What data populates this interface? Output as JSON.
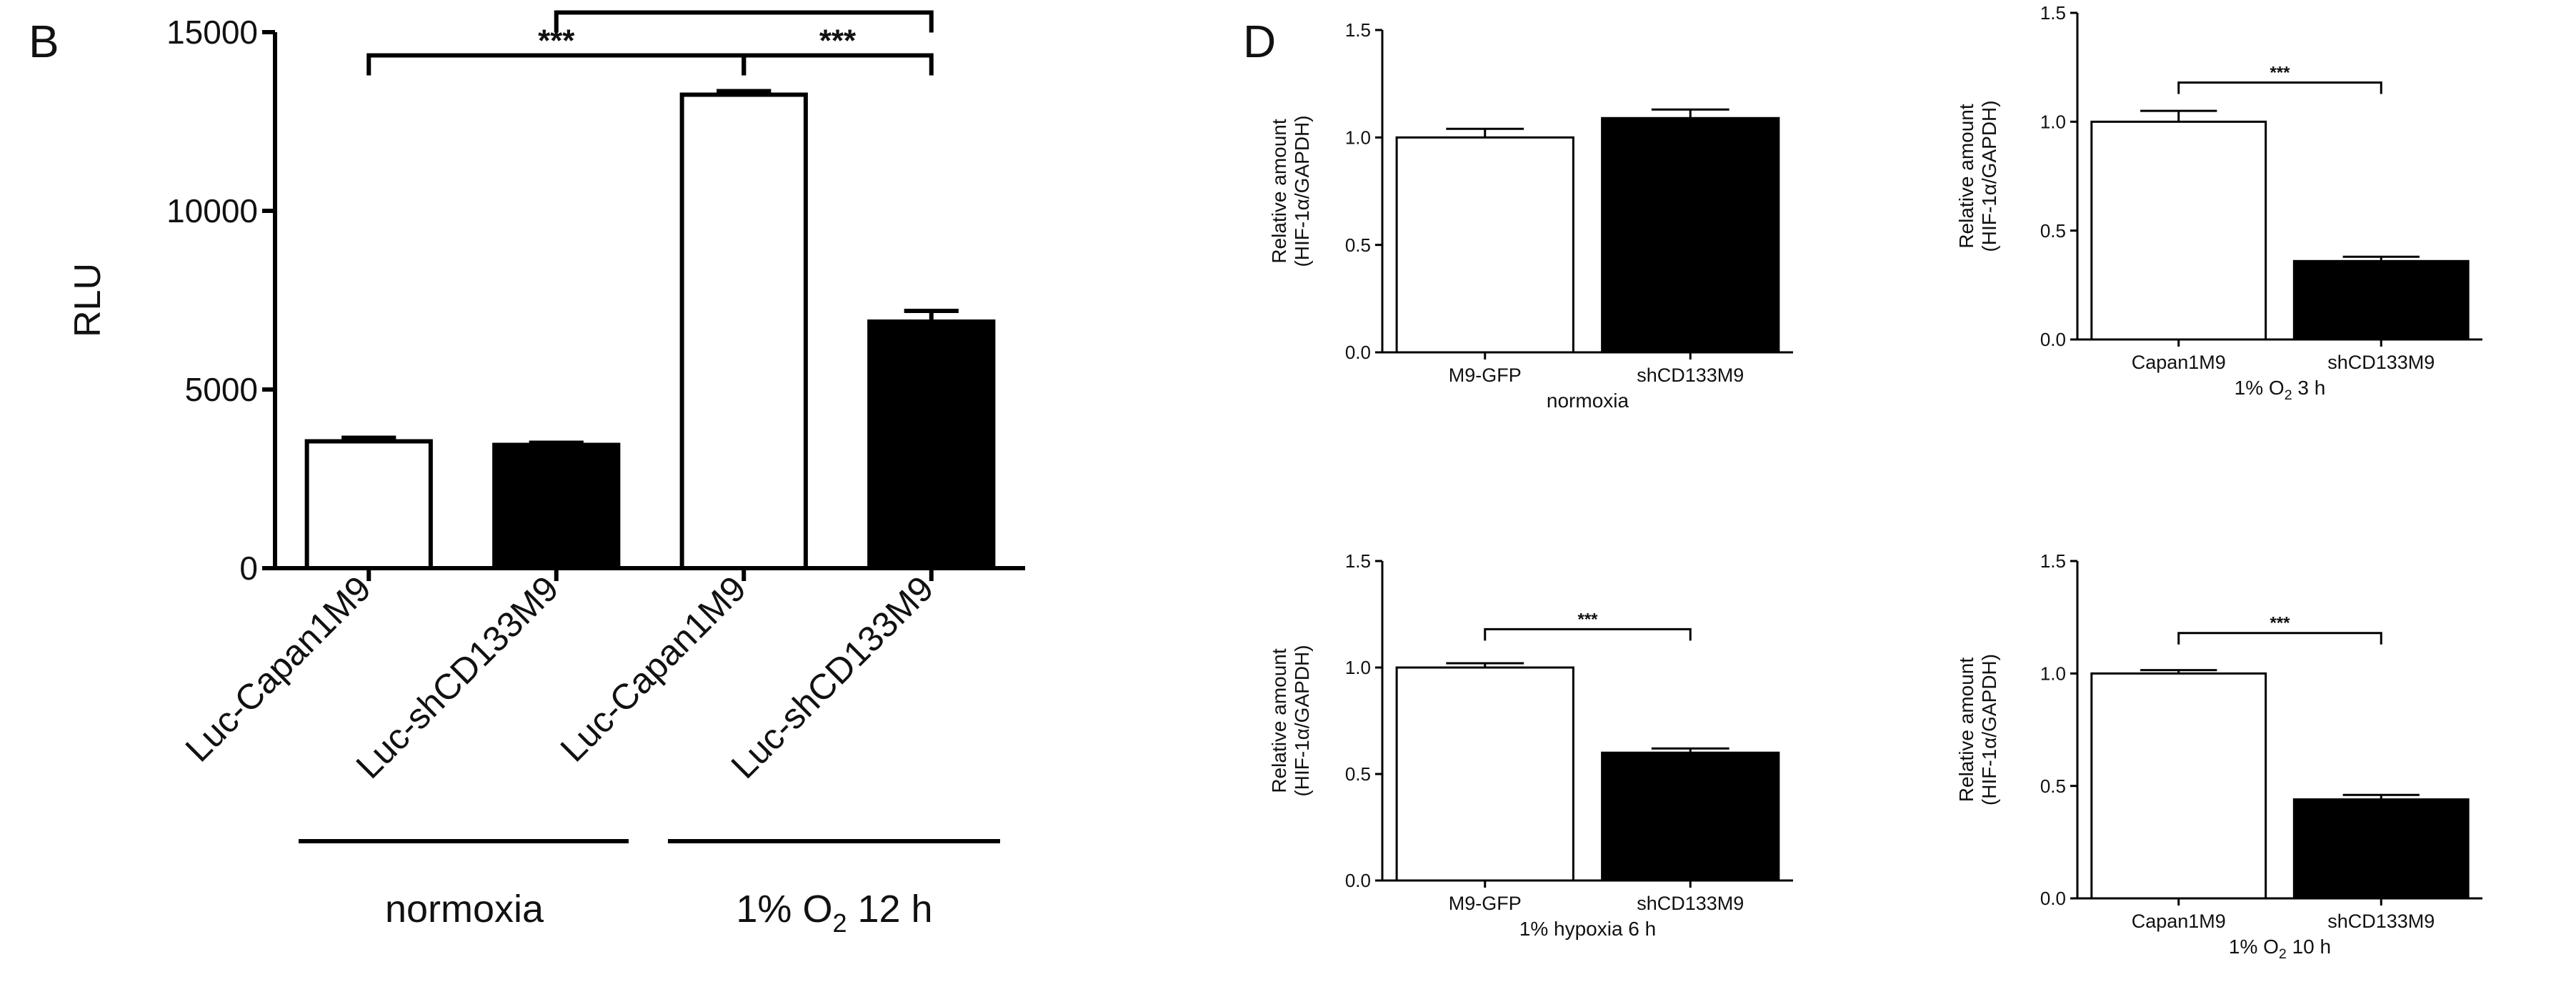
{
  "panel_b": {
    "label": "B",
    "group_labels": [
      "normoxia",
      "1% O",
      "2",
      " 12 h"
    ]
  },
  "panel_d": {
    "label": "D"
  },
  "chart_data": [
    {
      "type": "bar",
      "panel": "B",
      "categories": [
        "Luc-Capan1M9",
        "Luc-shCD133M9",
        "Luc-Capan1M9",
        "Luc-shCD133M9"
      ],
      "values": [
        3550,
        3450,
        13250,
        6900
      ],
      "errors": [
        100,
        60,
        100,
        300
      ],
      "fills": [
        "#ffffff",
        "#000000",
        "#ffffff",
        "#000000"
      ],
      "ylabel": "RLU",
      "ylim": [
        0,
        15000
      ],
      "yticks": [
        "0",
        "5000",
        "10000",
        "15000"
      ],
      "groups": [
        "normoxia",
        "1% O2 12 h"
      ],
      "significance": [
        {
          "from": 0,
          "to": 2,
          "label": "***"
        },
        {
          "from": 1,
          "to": 3,
          "label": "***"
        },
        {
          "from": 2,
          "to": 3,
          "label": "***"
        }
      ],
      "grid": false
    },
    {
      "type": "bar",
      "panel": "D",
      "categories": [
        "M9-GFP",
        "shCD133M9"
      ],
      "values": [
        1.0,
        1.09
      ],
      "errors": [
        0.04,
        0.04
      ],
      "fills": [
        "#ffffff",
        "#000000"
      ],
      "ylabel_lines": [
        "Relative amount",
        "(HIF-1α/GAPDH)"
      ],
      "ylim": [
        0,
        1.5
      ],
      "yticks": [
        "0.0",
        "0.5",
        "1.0",
        "1.5"
      ],
      "condition": "normoxia",
      "significance": [],
      "grid": false
    },
    {
      "type": "bar",
      "panel": "D",
      "categories": [
        "Capan1M9",
        "shCD133M9"
      ],
      "values": [
        1.0,
        0.36
      ],
      "errors": [
        0.05,
        0.02
      ],
      "fills": [
        "#ffffff",
        "#000000"
      ],
      "ylabel_lines": [
        "Relative amount",
        "(HIF-1α/GAPDH)"
      ],
      "ylim": [
        0,
        1.5
      ],
      "yticks": [
        "0.0",
        "0.5",
        "1.0",
        "1.5"
      ],
      "condition": "1% O2 3 h",
      "significance": [
        {
          "from": 0,
          "to": 1,
          "label": "***"
        }
      ],
      "grid": false
    },
    {
      "type": "bar",
      "panel": "D",
      "categories": [
        "M9-GFP",
        "shCD133M9"
      ],
      "values": [
        1.0,
        0.6
      ],
      "errors": [
        0.02,
        0.02
      ],
      "fills": [
        "#ffffff",
        "#000000"
      ],
      "ylabel_lines": [
        "Relative amount",
        "(HIF-1α/GAPDH)"
      ],
      "ylim": [
        0,
        1.5
      ],
      "yticks": [
        "0.0",
        "0.5",
        "1.0",
        "1.5"
      ],
      "condition": "1% hypoxia 6 h",
      "significance": [
        {
          "from": 0,
          "to": 1,
          "label": "***"
        }
      ],
      "grid": false
    },
    {
      "type": "bar",
      "panel": "D",
      "categories": [
        "Capan1M9",
        "shCD133M9"
      ],
      "values": [
        1.0,
        0.44
      ],
      "errors": [
        0.015,
        0.02
      ],
      "fills": [
        "#ffffff",
        "#000000"
      ],
      "ylabel_lines": [
        "Relative amount",
        "(HIF-1α/GAPDH)"
      ],
      "ylim": [
        0,
        1.5
      ],
      "yticks": [
        "0.0",
        "0.5",
        "1.0",
        "1.5"
      ],
      "condition": "1% O2 10 h",
      "significance": [
        {
          "from": 0,
          "to": 1,
          "label": "***"
        }
      ],
      "grid": false
    }
  ]
}
